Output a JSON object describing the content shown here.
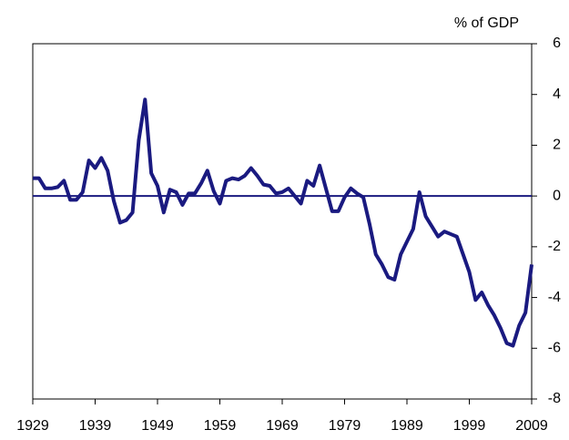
{
  "chart_data": {
    "type": "line",
    "y_label": "% of GDP",
    "x": [
      1929,
      1930,
      1931,
      1932,
      1933,
      1934,
      1935,
      1936,
      1937,
      1938,
      1939,
      1940,
      1941,
      1942,
      1943,
      1944,
      1945,
      1946,
      1947,
      1948,
      1949,
      1950,
      1951,
      1952,
      1953,
      1954,
      1955,
      1956,
      1957,
      1958,
      1959,
      1960,
      1961,
      1962,
      1963,
      1964,
      1965,
      1966,
      1967,
      1968,
      1969,
      1970,
      1971,
      1972,
      1973,
      1974,
      1975,
      1976,
      1977,
      1978,
      1979,
      1980,
      1981,
      1982,
      1983,
      1984,
      1985,
      1986,
      1987,
      1988,
      1989,
      1990,
      1991,
      1992,
      1993,
      1994,
      1995,
      1996,
      1997,
      1998,
      1999,
      2000,
      2001,
      2002,
      2003,
      2004,
      2005,
      2006,
      2007,
      2008,
      2009
    ],
    "series": [
      {
        "color": "#1a1a80",
        "values": [
          0.7,
          0.7,
          0.3,
          0.3,
          0.35,
          0.6,
          -0.15,
          -0.15,
          0.15,
          1.4,
          1.1,
          1.5,
          1.0,
          -0.2,
          -1.05,
          -0.95,
          -0.65,
          2.2,
          3.8,
          0.9,
          0.4,
          -0.65,
          0.25,
          0.15,
          -0.35,
          0.1,
          0.1,
          0.5,
          1.0,
          0.2,
          -0.3,
          0.6,
          0.7,
          0.65,
          0.8,
          1.1,
          0.8,
          0.45,
          0.4,
          0.1,
          0.15,
          0.3,
          0.0,
          -0.3,
          0.6,
          0.4,
          1.2,
          0.3,
          -0.6,
          -0.6,
          -0.05,
          0.3,
          0.1,
          -0.05,
          -1.1,
          -2.3,
          -2.7,
          -3.2,
          -3.3,
          -2.3,
          -1.8,
          -1.3,
          0.15,
          -0.8,
          -1.2,
          -1.6,
          -1.4,
          -1.5,
          -1.6,
          -2.3,
          -3.0,
          -4.1,
          -3.8,
          -4.3,
          -4.7,
          -5.2,
          -5.8,
          -5.9,
          -5.1,
          -4.6,
          -2.7
        ]
      }
    ],
    "xlim": [
      1929,
      2009
    ],
    "xticks": [
      1929,
      1939,
      1949,
      1959,
      1969,
      1979,
      1989,
      1999,
      2009
    ],
    "ylim": [
      -8,
      6
    ],
    "yticks": [
      -8,
      -6,
      -4,
      -2,
      0,
      2,
      4,
      6
    ],
    "reference_line": 0,
    "y_axis_side": "right"
  }
}
